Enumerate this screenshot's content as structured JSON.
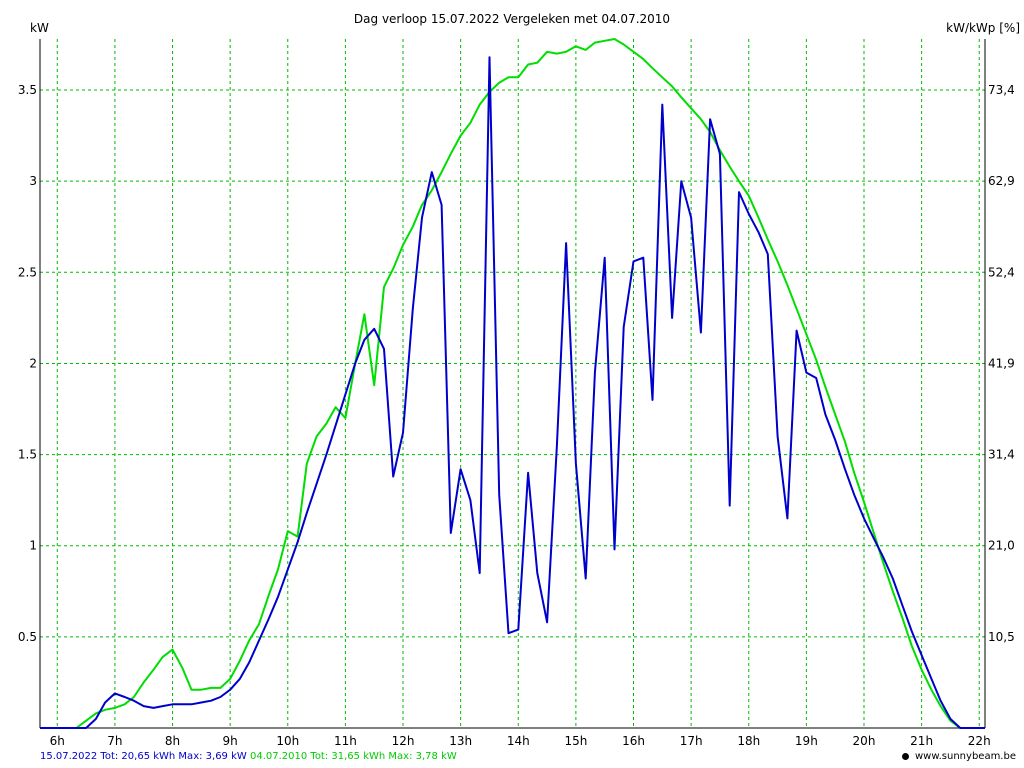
{
  "chart_data": {
    "type": "line",
    "title": "Dag  verloop 15.07.2022   Vergeleken met 04.07.2010",
    "ylabel_left": "kW",
    "ylabel_right": "kW/kWp [%]",
    "xlim": [
      5.7,
      22.1
    ],
    "ylim": [
      0,
      3.78
    ],
    "grid": true,
    "x_ticks": [
      6,
      7,
      8,
      9,
      10,
      11,
      12,
      13,
      14,
      15,
      16,
      17,
      18,
      19,
      20,
      21,
      22
    ],
    "x_tick_labels": [
      "6h",
      "7h",
      "8h",
      "9h",
      "10h",
      "11h",
      "12h",
      "13h",
      "14h",
      "15h",
      "16h",
      "17h",
      "18h",
      "19h",
      "20h",
      "21h",
      "22h"
    ],
    "y_ticks": [
      0.5,
      1,
      1.5,
      2,
      2.5,
      3,
      3.5
    ],
    "y_tick_labels": [
      "0.5",
      "1",
      "1.5",
      "2",
      "2.5",
      "3",
      "3.5"
    ],
    "y2_ticks": [
      0.5,
      1,
      1.5,
      2,
      2.5,
      3,
      3.5
    ],
    "y2_tick_labels": [
      "10,5",
      "21,0",
      "31,4",
      "41,9",
      "52,4",
      "62,9",
      "73,4"
    ],
    "series": [
      {
        "color": "#0000cc",
        "points": [
          [
            5.7,
            0
          ],
          [
            6.17,
            0
          ],
          [
            6.5,
            0
          ],
          [
            6.67,
            0.05
          ],
          [
            6.83,
            0.14
          ],
          [
            7,
            0.19
          ],
          [
            7.17,
            0.17
          ],
          [
            7.33,
            0.15
          ],
          [
            7.5,
            0.12
          ],
          [
            7.67,
            0.11
          ],
          [
            7.83,
            0.12
          ],
          [
            8,
            0.13
          ],
          [
            8.17,
            0.13
          ],
          [
            8.33,
            0.13
          ],
          [
            8.5,
            0.14
          ],
          [
            8.67,
            0.15
          ],
          [
            8.83,
            0.17
          ],
          [
            9,
            0.21
          ],
          [
            9.17,
            0.27
          ],
          [
            9.33,
            0.36
          ],
          [
            9.5,
            0.48
          ],
          [
            9.67,
            0.6
          ],
          [
            9.83,
            0.72
          ],
          [
            10,
            0.87
          ],
          [
            10.17,
            1.02
          ],
          [
            10.33,
            1.18
          ],
          [
            10.5,
            1.34
          ],
          [
            10.67,
            1.5
          ],
          [
            10.83,
            1.66
          ],
          [
            11,
            1.83
          ],
          [
            11.17,
            2.0
          ],
          [
            11.33,
            2.13
          ],
          [
            11.5,
            2.19
          ],
          [
            11.67,
            2.08
          ],
          [
            11.83,
            1.38
          ],
          [
            12,
            1.62
          ],
          [
            12.17,
            2.3
          ],
          [
            12.33,
            2.8
          ],
          [
            12.5,
            3.05
          ],
          [
            12.67,
            2.87
          ],
          [
            12.83,
            1.07
          ],
          [
            13,
            1.42
          ],
          [
            13.17,
            1.25
          ],
          [
            13.33,
            0.85
          ],
          [
            13.5,
            3.68
          ],
          [
            13.67,
            1.28
          ],
          [
            13.83,
            0.52
          ],
          [
            14,
            0.54
          ],
          [
            14.17,
            1.4
          ],
          [
            14.33,
            0.85
          ],
          [
            14.5,
            0.58
          ],
          [
            14.67,
            1.55
          ],
          [
            14.83,
            2.66
          ],
          [
            15,
            1.45
          ],
          [
            15.17,
            0.82
          ],
          [
            15.33,
            1.95
          ],
          [
            15.5,
            2.58
          ],
          [
            15.67,
            0.98
          ],
          [
            15.83,
            2.2
          ],
          [
            16,
            2.56
          ],
          [
            16.17,
            2.58
          ],
          [
            16.33,
            1.8
          ],
          [
            16.5,
            3.42
          ],
          [
            16.67,
            2.25
          ],
          [
            16.83,
            3.0
          ],
          [
            17,
            2.8
          ],
          [
            17.17,
            2.17
          ],
          [
            17.33,
            3.34
          ],
          [
            17.5,
            3.15
          ],
          [
            17.67,
            1.22
          ],
          [
            17.83,
            2.94
          ],
          [
            18,
            2.82
          ],
          [
            18.17,
            2.72
          ],
          [
            18.33,
            2.6
          ],
          [
            18.5,
            1.6
          ],
          [
            18.67,
            1.15
          ],
          [
            18.83,
            2.18
          ],
          [
            19,
            1.95
          ],
          [
            19.17,
            1.92
          ],
          [
            19.33,
            1.72
          ],
          [
            19.5,
            1.58
          ],
          [
            19.67,
            1.42
          ],
          [
            19.83,
            1.28
          ],
          [
            20,
            1.15
          ],
          [
            20.17,
            1.04
          ],
          [
            20.33,
            0.94
          ],
          [
            20.5,
            0.82
          ],
          [
            20.67,
            0.67
          ],
          [
            20.83,
            0.53
          ],
          [
            21,
            0.4
          ],
          [
            21.17,
            0.27
          ],
          [
            21.33,
            0.15
          ],
          [
            21.5,
            0.05
          ],
          [
            21.67,
            0
          ],
          [
            22.1,
            0
          ]
        ]
      },
      {
        "color": "#00dd00",
        "points": [
          [
            5.7,
            0
          ],
          [
            6.33,
            0
          ],
          [
            6.5,
            0.04
          ],
          [
            6.67,
            0.08
          ],
          [
            6.83,
            0.1
          ],
          [
            7,
            0.11
          ],
          [
            7.17,
            0.13
          ],
          [
            7.33,
            0.17
          ],
          [
            7.5,
            0.25
          ],
          [
            7.67,
            0.32
          ],
          [
            7.83,
            0.39
          ],
          [
            8,
            0.43
          ],
          [
            8.17,
            0.33
          ],
          [
            8.33,
            0.21
          ],
          [
            8.5,
            0.21
          ],
          [
            8.67,
            0.22
          ],
          [
            8.83,
            0.22
          ],
          [
            9,
            0.27
          ],
          [
            9.17,
            0.37
          ],
          [
            9.33,
            0.48
          ],
          [
            9.5,
            0.57
          ],
          [
            9.67,
            0.73
          ],
          [
            9.83,
            0.87
          ],
          [
            10,
            1.08
          ],
          [
            10.17,
            1.05
          ],
          [
            10.33,
            1.45
          ],
          [
            10.5,
            1.6
          ],
          [
            10.67,
            1.67
          ],
          [
            10.83,
            1.76
          ],
          [
            11,
            1.7
          ],
          [
            11.17,
            2.0
          ],
          [
            11.33,
            2.27
          ],
          [
            11.5,
            1.88
          ],
          [
            11.67,
            2.42
          ],
          [
            11.83,
            2.52
          ],
          [
            12,
            2.65
          ],
          [
            12.17,
            2.75
          ],
          [
            12.33,
            2.87
          ],
          [
            12.5,
            2.95
          ],
          [
            12.67,
            3.05
          ],
          [
            12.83,
            3.15
          ],
          [
            13,
            3.25
          ],
          [
            13.17,
            3.32
          ],
          [
            13.33,
            3.42
          ],
          [
            13.5,
            3.49
          ],
          [
            13.67,
            3.54
          ],
          [
            13.83,
            3.57
          ],
          [
            14,
            3.57
          ],
          [
            14.17,
            3.64
          ],
          [
            14.33,
            3.65
          ],
          [
            14.5,
            3.71
          ],
          [
            14.67,
            3.7
          ],
          [
            14.83,
            3.71
          ],
          [
            15,
            3.74
          ],
          [
            15.17,
            3.72
          ],
          [
            15.33,
            3.76
          ],
          [
            15.5,
            3.77
          ],
          [
            15.67,
            3.78
          ],
          [
            15.83,
            3.75
          ],
          [
            16,
            3.71
          ],
          [
            16.17,
            3.67
          ],
          [
            16.33,
            3.62
          ],
          [
            16.5,
            3.57
          ],
          [
            16.67,
            3.52
          ],
          [
            16.83,
            3.46
          ],
          [
            17,
            3.4
          ],
          [
            17.17,
            3.34
          ],
          [
            17.33,
            3.27
          ],
          [
            17.5,
            3.17
          ],
          [
            17.67,
            3.08
          ],
          [
            17.83,
            3.0
          ],
          [
            18,
            2.92
          ],
          [
            18.17,
            2.8
          ],
          [
            18.33,
            2.68
          ],
          [
            18.5,
            2.56
          ],
          [
            18.67,
            2.43
          ],
          [
            18.83,
            2.3
          ],
          [
            19,
            2.16
          ],
          [
            19.17,
            2.02
          ],
          [
            19.33,
            1.87
          ],
          [
            19.5,
            1.72
          ],
          [
            19.67,
            1.57
          ],
          [
            19.83,
            1.4
          ],
          [
            20,
            1.24
          ],
          [
            20.17,
            1.07
          ],
          [
            20.33,
            0.91
          ],
          [
            20.5,
            0.75
          ],
          [
            20.67,
            0.6
          ],
          [
            20.83,
            0.45
          ],
          [
            21,
            0.32
          ],
          [
            21.17,
            0.21
          ],
          [
            21.33,
            0.12
          ],
          [
            21.5,
            0.04
          ],
          [
            21.67,
            0
          ],
          [
            22.1,
            0
          ]
        ]
      }
    ]
  },
  "footer": {
    "series1_text": "15.07.2022 Tot: 20,65 kWh Max: 3,69 kW",
    "series2_text": "04.07.2010 Tot: 31,65 kWh Max: 3,78 kW",
    "brand_text": "www.sunnybeam.be",
    "brand_icon": "sunnybeam-logo-icon"
  }
}
